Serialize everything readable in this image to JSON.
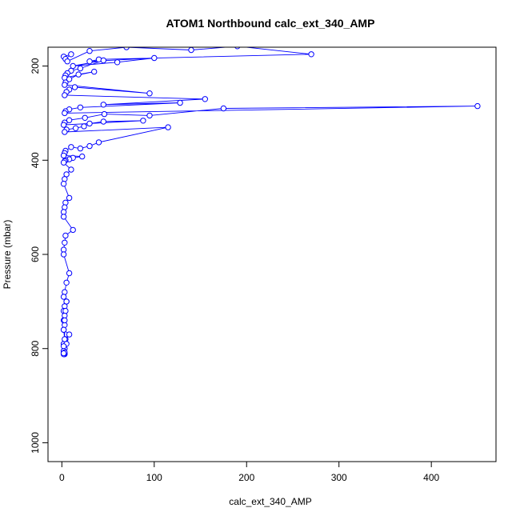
{
  "chart_data": {
    "type": "line",
    "title": "ATOM1 Northbound calc_ext_340_AMP",
    "xlabel": "calc_ext_340_AMP",
    "ylabel": "Pressure (mbar)",
    "xlim": [
      -15,
      470
    ],
    "ylim": [
      1040,
      160
    ],
    "y_reversed": true,
    "x_ticks": [
      "0",
      "100",
      "200",
      "300",
      "400"
    ],
    "y_ticks": [
      "200",
      "400",
      "600",
      "800",
      "1000"
    ],
    "x_tick_values": [
      0,
      100,
      200,
      300,
      400
    ],
    "y_tick_values": [
      200,
      400,
      600,
      800,
      1000
    ],
    "grid": false,
    "marker": "open-circle",
    "line_color": "#0000ff",
    "series": [
      {
        "x": [
          2,
          10,
          4,
          6,
          30,
          70,
          140,
          190,
          270,
          40,
          30,
          100,
          60,
          12,
          45,
          20,
          10,
          6,
          4,
          3,
          35,
          18,
          8,
          4,
          3,
          95,
          14,
          8,
          5,
          3,
          155,
          45,
          128,
          20,
          8,
          4,
          3,
          450,
          175,
          95,
          46,
          25,
          8,
          3,
          2,
          88,
          45,
          30,
          24,
          15,
          5,
          3,
          115,
          40,
          30,
          20,
          10,
          4,
          3,
          2,
          22,
          12,
          8,
          4,
          3,
          2,
          10,
          5,
          3,
          2,
          8,
          4,
          3,
          2,
          2,
          12,
          4,
          3,
          2,
          2,
          8,
          5,
          3,
          2,
          5,
          3,
          2,
          3,
          2,
          3,
          2,
          8,
          4,
          2,
          3,
          2,
          5,
          3,
          2,
          3,
          2,
          5,
          4,
          3,
          2,
          3,
          2,
          2,
          3,
          2,
          3,
          2
        ],
        "y": [
          180,
          175,
          185,
          190,
          168,
          160,
          166,
          158,
          175,
          186,
          190,
          183,
          192,
          200,
          188,
          205,
          210,
          215,
          220,
          225,
          212,
          218,
          228,
          235,
          240,
          258,
          245,
          250,
          255,
          262,
          270,
          282,
          278,
          288,
          292,
          296,
          300,
          285,
          290,
          305,
          302,
          310,
          315,
          320,
          325,
          316,
          318,
          322,
          328,
          332,
          335,
          340,
          330,
          362,
          370,
          375,
          372,
          380,
          385,
          390,
          392,
          395,
          398,
          400,
          402,
          405,
          420,
          430,
          440,
          450,
          480,
          490,
          500,
          510,
          520,
          548,
          560,
          575,
          590,
          600,
          640,
          660,
          680,
          690,
          700,
          710,
          720,
          730,
          740,
          750,
          760,
          770,
          780,
          790,
          800,
          805,
          790,
          800,
          810,
          812,
          808,
          700,
          720,
          740,
          760,
          780,
          795,
          805,
          810,
          812,
          808,
          810
        ]
      }
    ]
  }
}
